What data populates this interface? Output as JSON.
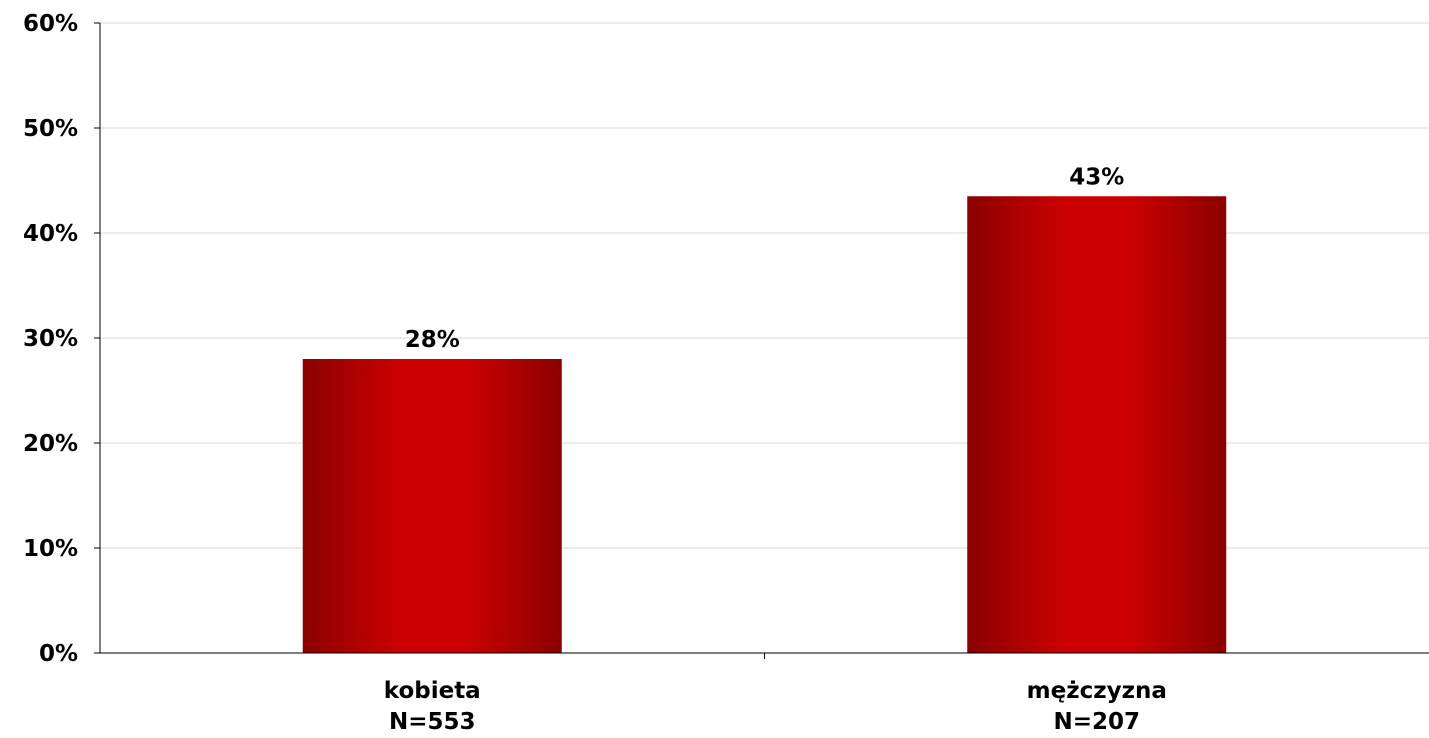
{
  "chart_data": {
    "type": "bar",
    "categories": [
      "kobieta",
      "mężczyzna"
    ],
    "category_sublabels": [
      "N=553",
      "N=207"
    ],
    "values": [
      28,
      43.5
    ],
    "data_labels": [
      "28%",
      "43%"
    ],
    "ylim": [
      0,
      60
    ],
    "y_ticks": [
      "0%",
      "10%",
      "20%",
      "30%",
      "40%",
      "50%",
      "60%"
    ],
    "y_tick_values": [
      0,
      10,
      20,
      30,
      40,
      50,
      60
    ],
    "grid": true,
    "legend": "none",
    "title": "",
    "xlabel": "",
    "ylabel": "",
    "colors": {
      "bar_edge": "#8b0000",
      "bar_center": "#cc0000",
      "grid": "#d9d9d9",
      "axis": "#000000"
    }
  }
}
